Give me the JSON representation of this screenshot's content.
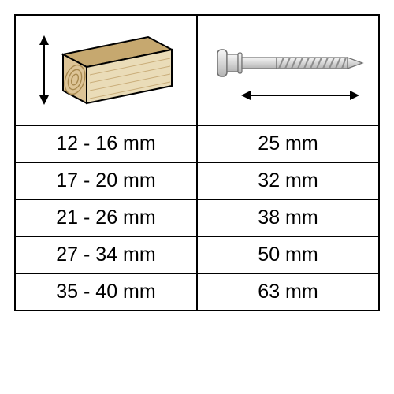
{
  "table": {
    "border_color": "#000000",
    "background_color": "#ffffff",
    "text_color": "#000000",
    "font_size_pt": 18,
    "columns": [
      "wood_thickness",
      "screw_length"
    ],
    "rows": [
      {
        "thickness": "12 - 16 mm",
        "screw": "25 mm"
      },
      {
        "thickness": "17 - 20 mm",
        "screw": "32 mm"
      },
      {
        "thickness": "21 - 26 mm",
        "screw": "38 mm"
      },
      {
        "thickness": "27 - 34 mm",
        "screw": "50 mm"
      },
      {
        "thickness": "35 - 40 mm",
        "screw": "63 mm"
      }
    ]
  },
  "wood": {
    "top_fill": "#c6a86f",
    "front_fill": "#ddc496",
    "side_fill": "#eadcb8",
    "stroke": "#000000",
    "grain_color": "#a8894f"
  },
  "screw": {
    "metal_light": "#f4f4f4",
    "metal_mid": "#d2d2d2",
    "metal_dark": "#a9a9a9",
    "stroke": "#6f6f6f"
  },
  "arrow_color": "#000000"
}
